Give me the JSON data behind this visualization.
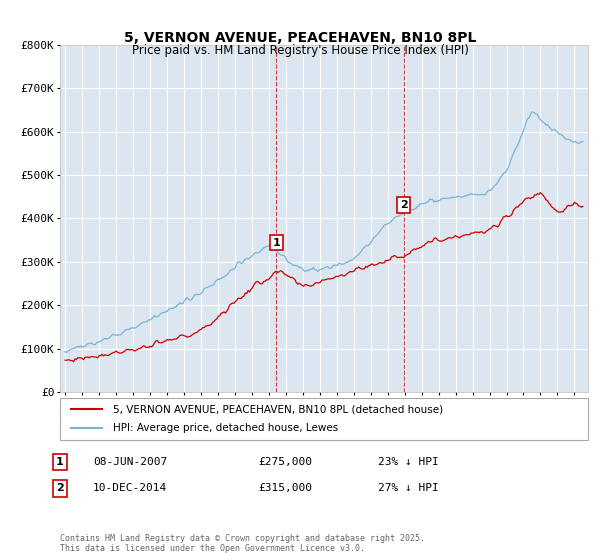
{
  "title": "5, VERNON AVENUE, PEACEHAVEN, BN10 8PL",
  "subtitle": "Price paid vs. HM Land Registry's House Price Index (HPI)",
  "background_color": "#ffffff",
  "plot_bg_color": "#dce6f0",
  "grid_color": "#ffffff",
  "hpi_color": "#7ab3d4",
  "property_color": "#cc0000",
  "vline_color": "#cc0000",
  "ylim": [
    0,
    800000
  ],
  "yticks": [
    0,
    100000,
    200000,
    300000,
    400000,
    500000,
    600000,
    700000,
    800000
  ],
  "ytick_labels": [
    "£0",
    "£100K",
    "£200K",
    "£300K",
    "£400K",
    "£500K",
    "£600K",
    "£700K",
    "£800K"
  ],
  "sale1_date": 2007.44,
  "sale1_price": 275000,
  "sale1_label": "1",
  "sale2_date": 2014.94,
  "sale2_price": 315000,
  "sale2_label": "2",
  "legend_property": "5, VERNON AVENUE, PEACEHAVEN, BN10 8PL (detached house)",
  "legend_hpi": "HPI: Average price, detached house, Lewes",
  "note1_label": "1",
  "note1_date": "08-JUN-2007",
  "note1_price": "£275,000",
  "note1_hpi": "23% ↓ HPI",
  "note2_label": "2",
  "note2_date": "10-DEC-2014",
  "note2_price": "£315,000",
  "note2_hpi": "27% ↓ HPI",
  "copyright": "Contains HM Land Registry data © Crown copyright and database right 2025.\nThis data is licensed under the Open Government Licence v3.0."
}
